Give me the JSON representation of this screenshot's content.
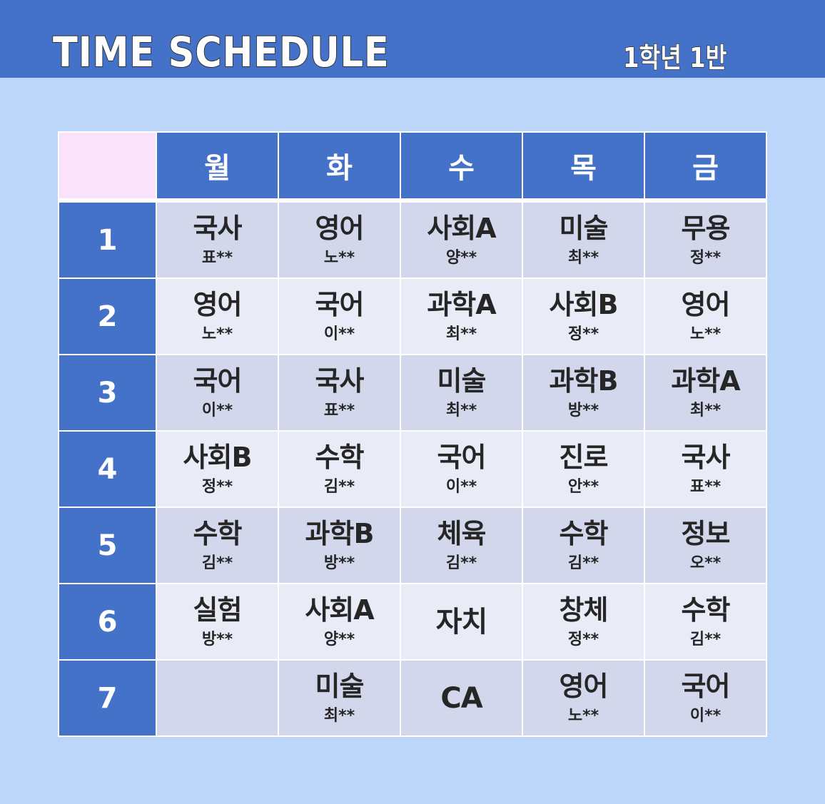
{
  "header": {
    "title": "TIME SCHEDULE",
    "class_label": "1학년 1반"
  },
  "days": [
    "월",
    "화",
    "수",
    "목",
    "금"
  ],
  "rows": [
    {
      "period": "1",
      "cells": [
        {
          "subject": "국사",
          "teacher": "표**"
        },
        {
          "subject": "영어",
          "teacher": "노**"
        },
        {
          "subject": "사회A",
          "teacher": "양**"
        },
        {
          "subject": "미술",
          "teacher": "최**"
        },
        {
          "subject": "무용",
          "teacher": "정**"
        }
      ]
    },
    {
      "period": "2",
      "cells": [
        {
          "subject": "영어",
          "teacher": "노**"
        },
        {
          "subject": "국어",
          "teacher": "이**"
        },
        {
          "subject": "과학A",
          "teacher": "최**"
        },
        {
          "subject": "사회B",
          "teacher": "정**"
        },
        {
          "subject": "영어",
          "teacher": "노**"
        }
      ]
    },
    {
      "period": "3",
      "cells": [
        {
          "subject": "국어",
          "teacher": "이**"
        },
        {
          "subject": "국사",
          "teacher": "표**"
        },
        {
          "subject": "미술",
          "teacher": "최**"
        },
        {
          "subject": "과학B",
          "teacher": "방**"
        },
        {
          "subject": "과학A",
          "teacher": "최**"
        }
      ]
    },
    {
      "period": "4",
      "cells": [
        {
          "subject": "사회B",
          "teacher": "정**"
        },
        {
          "subject": "수학",
          "teacher": "김**"
        },
        {
          "subject": "국어",
          "teacher": "이**"
        },
        {
          "subject": "진로",
          "teacher": "안**"
        },
        {
          "subject": "국사",
          "teacher": "표**"
        }
      ]
    },
    {
      "period": "5",
      "cells": [
        {
          "subject": "수학",
          "teacher": "김**"
        },
        {
          "subject": "과학B",
          "teacher": "방**"
        },
        {
          "subject": "체육",
          "teacher": "김**"
        },
        {
          "subject": "수학",
          "teacher": "김**"
        },
        {
          "subject": "정보",
          "teacher": "오**"
        }
      ]
    },
    {
      "period": "6",
      "cells": [
        {
          "subject": "실험",
          "teacher": "방**"
        },
        {
          "subject": "사회A",
          "teacher": "양**"
        },
        {
          "subject": "자치",
          "teacher": ""
        },
        {
          "subject": "창체",
          "teacher": "정**"
        },
        {
          "subject": "수학",
          "teacher": "김**"
        }
      ]
    },
    {
      "period": "7",
      "cells": [
        {
          "subject": "",
          "teacher": ""
        },
        {
          "subject": "미술",
          "teacher": "최**"
        },
        {
          "subject": "CA",
          "teacher": ""
        },
        {
          "subject": "영어",
          "teacher": "노**"
        },
        {
          "subject": "국어",
          "teacher": "이**"
        }
      ]
    }
  ],
  "colors": {
    "header_bg": "#4472c8",
    "page_bg": "#bcd6fa",
    "corner": "#fae2fb",
    "row_odd": "#d2d7ec",
    "row_even": "#e9ecf6",
    "text": "#262626"
  }
}
